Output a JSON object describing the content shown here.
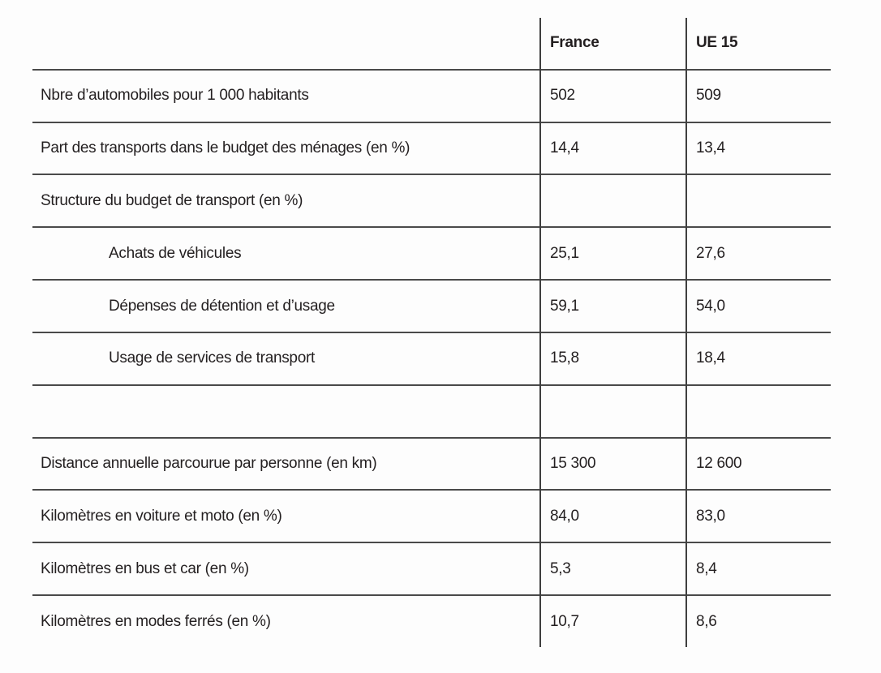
{
  "table": {
    "columns": [
      "France",
      "UE 15"
    ],
    "rows": [
      {
        "label": "Nbre d’automobiles pour 1 000 habitants",
        "france": "502",
        "ue15": "509"
      },
      {
        "label": "Part des transports dans le budget des ménages (en %)",
        "france": "14,4",
        "ue15": "13,4"
      },
      {
        "label": "Structure du budget de transport (en %)",
        "france": "",
        "ue15": ""
      },
      {
        "label": "Achats de véhicules",
        "france": "25,1",
        "ue15": "27,6"
      },
      {
        "label": "Dépenses de détention et d’usage",
        "france": "59,1",
        "ue15": "54,0"
      },
      {
        "label": "Usage de services de transport",
        "france": "15,8",
        "ue15": "18,4"
      },
      {
        "label": "",
        "france": "",
        "ue15": ""
      },
      {
        "label": "Distance annuelle parcourue par personne (en km)",
        "france": "15 300",
        "ue15": "12 600"
      },
      {
        "label": "Kilomètres en voiture et moto (en %)",
        "france": "84,0",
        "ue15": "83,0"
      },
      {
        "label": "Kilomètres en bus et car (en %)",
        "france": "5,3",
        "ue15": "8,4"
      },
      {
        "label": "Kilomètres en modes ferrés (en %)",
        "france": "10,7",
        "ue15": "8,6"
      }
    ],
    "colors": {
      "rule": "#4a4a4a",
      "text": "#231f20",
      "background": "#fdfdfd"
    }
  }
}
